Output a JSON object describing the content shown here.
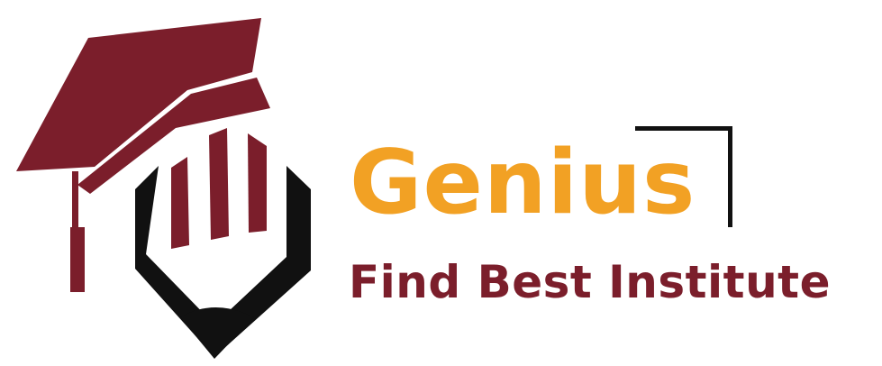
{
  "brand": {
    "name": "Genius",
    "tagline": "Find Best Institute",
    "icon": "graduation-cap-pencil-icon"
  },
  "colors": {
    "primary": "#7B1E2B",
    "accent": "#F2A124",
    "ink": "#111111",
    "background": "#FFFFFF"
  }
}
